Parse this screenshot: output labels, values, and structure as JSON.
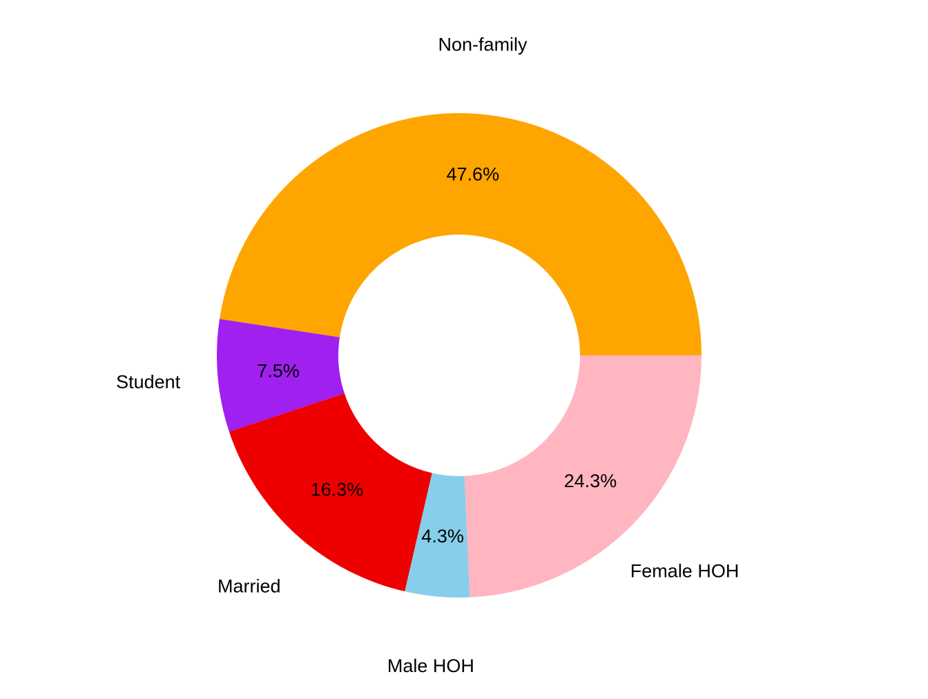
{
  "chart_data": {
    "type": "pie",
    "style": "donut",
    "title": "",
    "slices": [
      {
        "label": "Non-family",
        "value": 47.6,
        "percent_label": "47.6%",
        "color": "#FFA500"
      },
      {
        "label": "Student",
        "value": 7.5,
        "percent_label": "7.5%",
        "color": "#A020F0"
      },
      {
        "label": "Married",
        "value": 16.3,
        "percent_label": "16.3%",
        "color": "#EE0000"
      },
      {
        "label": "Male HOH",
        "value": 4.3,
        "percent_label": "4.3%",
        "color": "#87CEEB"
      },
      {
        "label": "Female HOH",
        "value": 24.3,
        "percent_label": "24.3%",
        "color": "#FFB6C1"
      }
    ],
    "legend": "none"
  }
}
